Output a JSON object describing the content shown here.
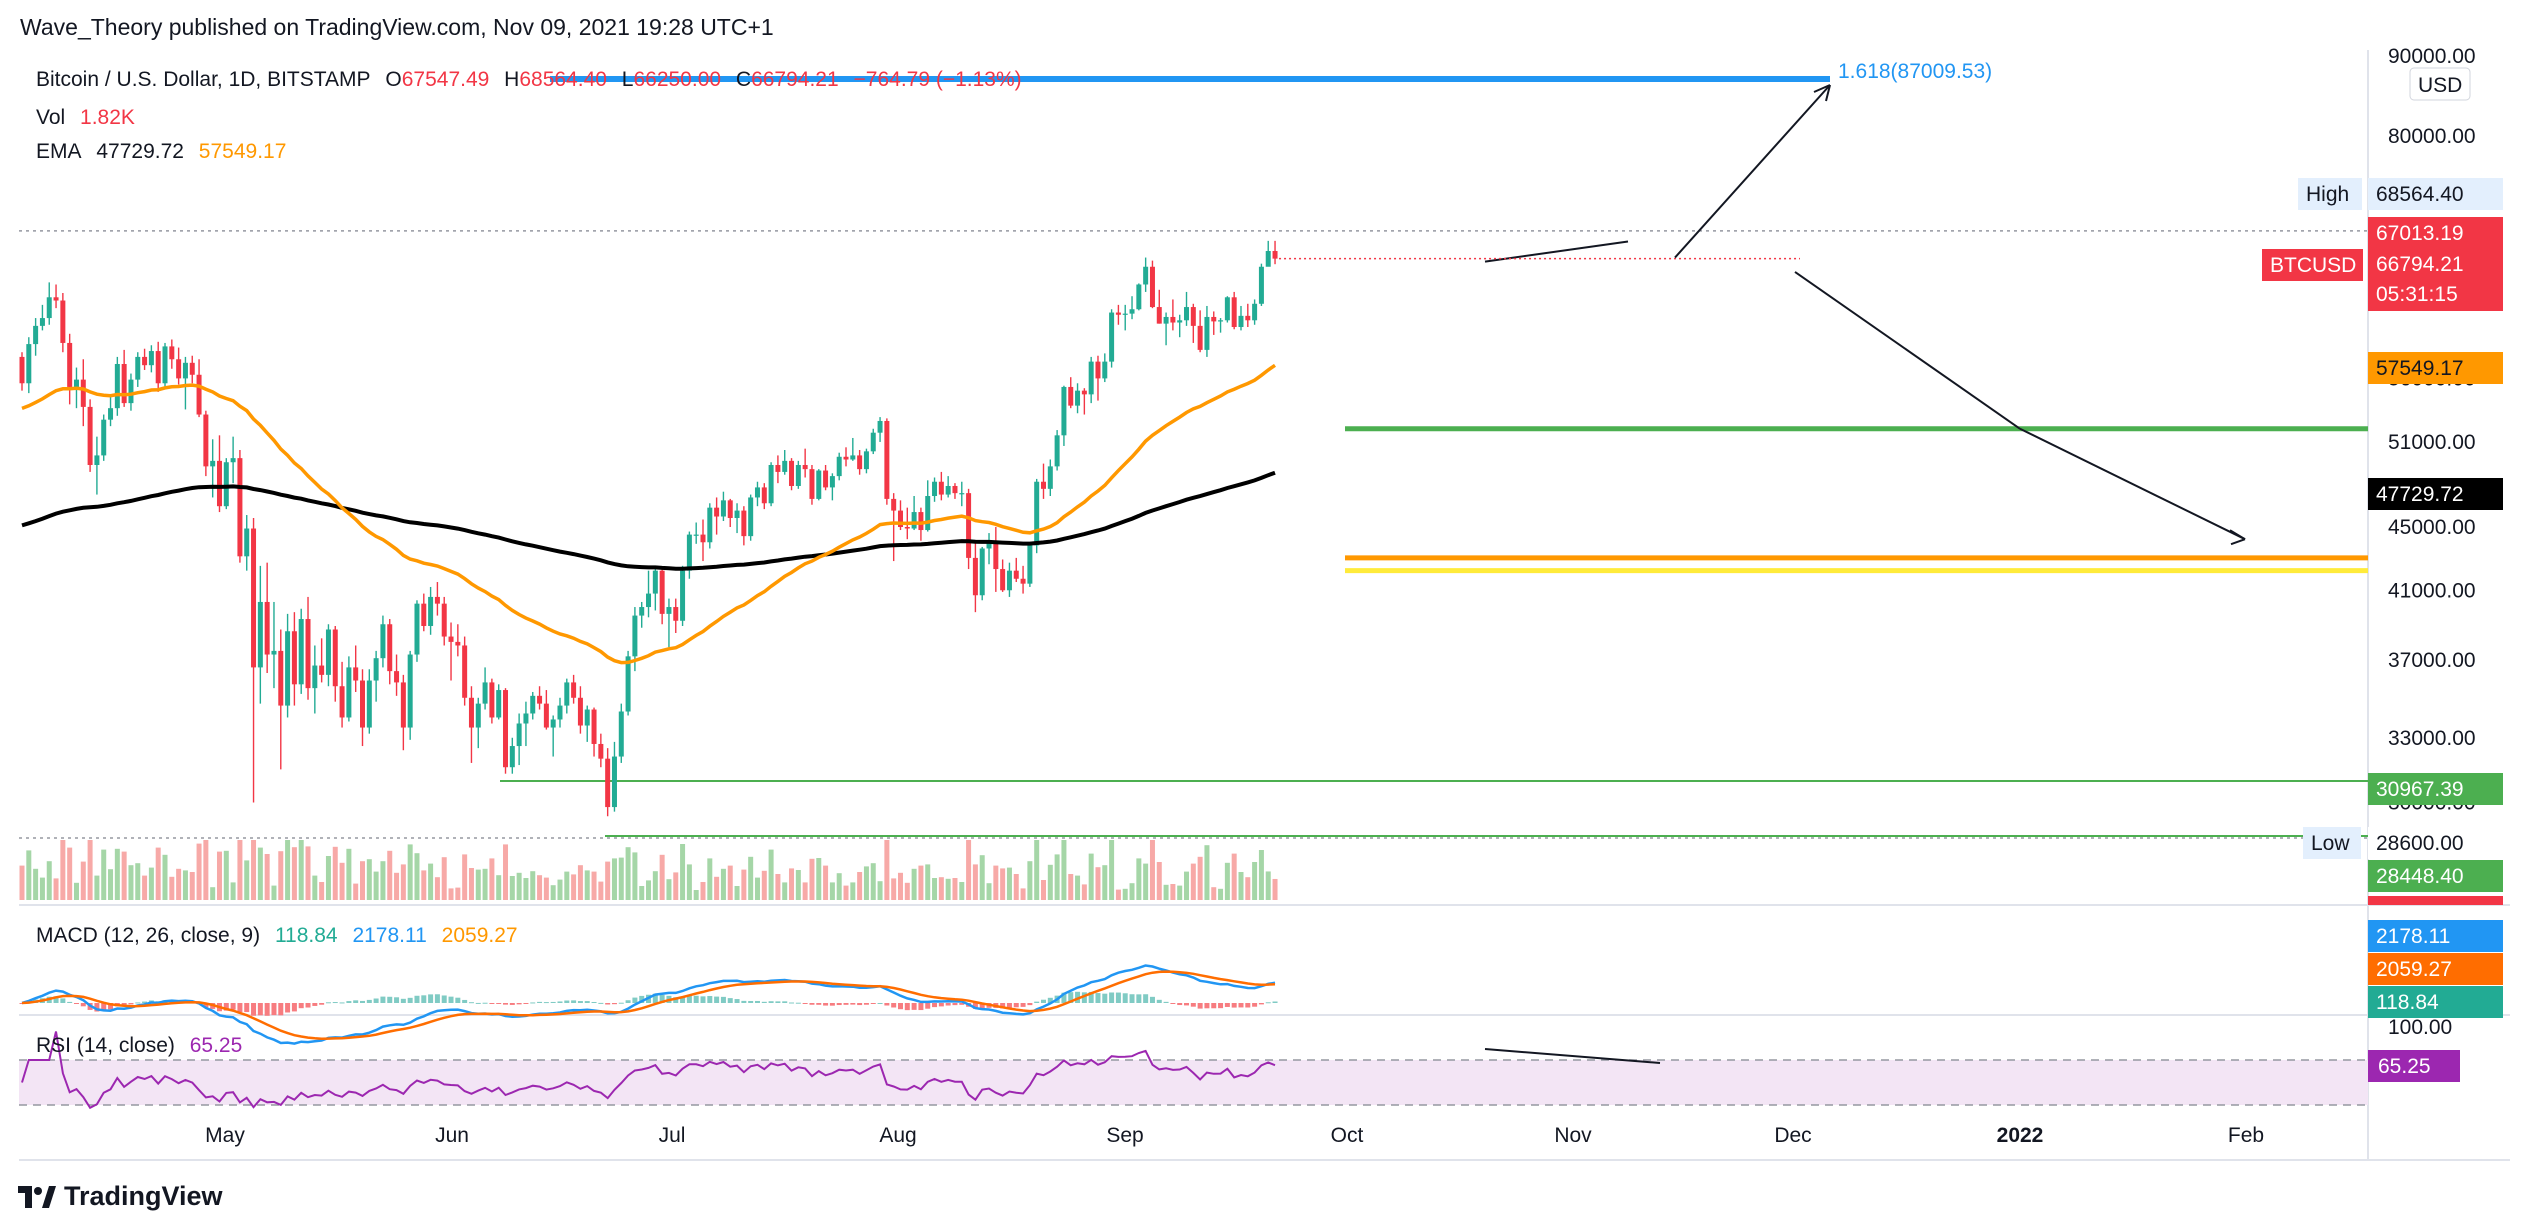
{
  "publisher": "Wave_Theory published on TradingView.com, Nov 09, 2021 19:28 UTC+1",
  "brand": "TradingView",
  "symbol": {
    "title": "Bitcoin / U.S. Dollar, 1D, BITSTAMP",
    "open_label": "O",
    "open": "67547.49",
    "high_label": "H",
    "high": "68564.40",
    "low_label": "L",
    "low": "66250.00",
    "close_label": "C",
    "close": "66794.21",
    "change": "−764.79 (−1.13%)"
  },
  "volume": {
    "label": "Vol",
    "value": "1.82K"
  },
  "ema": {
    "label": "EMA",
    "value1": "47729.72",
    "value2": "57549.17"
  },
  "macd": {
    "label": "MACD (12, 26, close, 9)",
    "hist": "118.84",
    "macd": "2178.11",
    "signal": "2059.27"
  },
  "rsi": {
    "label": "RSI (14, close)",
    "value": "65.25"
  },
  "currency": "USD",
  "colors": {
    "up": "#22ab94",
    "down": "#f23645",
    "ema_fast": "#ff9800",
    "ema_slow": "#000000",
    "fib_line": "#2196f3",
    "support_green": "#4caf50",
    "support_orange": "#ff9800",
    "support_yellow": "#ffeb3b",
    "rsi": "#9c27b0",
    "macd": "#2196f3",
    "signal": "#ff6d00"
  },
  "annotations": {
    "fib_label": "1.618(87009.53)",
    "high_label": "High",
    "low_label": "Low",
    "ticker": "BTCUSD",
    "countdown": "05:31:15"
  },
  "chart_data": {
    "type": "candlestick",
    "x_ticks": [
      "May",
      "Jun",
      "Jul",
      "Aug",
      "Sep",
      "Oct",
      "Nov",
      "Dec",
      "2022",
      "Feb"
    ],
    "y_ticks": [
      "90000.00",
      "80000.00",
      "68564.40",
      "67013.19",
      "66794.21",
      "57549.17",
      "56000.00",
      "51000.00",
      "47729.72",
      "45000.00",
      "41000.00",
      "37000.00",
      "33000.00",
      "30967.39",
      "30000.00",
      "28600.00",
      "28448.40"
    ],
    "price_labels": {
      "high": "68564.40",
      "last_close_upper": "67013.19",
      "last": "66794.21",
      "ema_fast": "57549.17",
      "ema_slow": "47729.72",
      "support": "30967.39",
      "low": "28600.00",
      "extra": "28448.40"
    },
    "macd_labels": [
      "2178.11",
      "2059.27",
      "118.84"
    ],
    "rsi_labels": [
      "100.00",
      "65.25"
    ],
    "levels": {
      "fib_1618": 87009.53,
      "green_support": 52000,
      "orange_support": 43000,
      "yellow_support": 42200,
      "green_thin_support": 30967.39,
      "low": 28600.0,
      "high": 68564.4
    },
    "candles": [
      [
        57800,
        58200,
        55000,
        55600
      ],
      [
        55600,
        59500,
        54800,
        58900
      ],
      [
        58900,
        61200,
        57900,
        60500
      ],
      [
        60500,
        62400,
        60100,
        61200
      ],
      [
        61200,
        64500,
        60600,
        63100
      ],
      [
        63100,
        64300,
        62100,
        62800
      ],
      [
        62800,
        63500,
        58200,
        59000
      ],
      [
        59000,
        59800,
        53900,
        55300
      ],
      [
        55300,
        56900,
        53600,
        55900
      ],
      [
        55900,
        57600,
        52200,
        53700
      ],
      [
        53700,
        54300,
        48800,
        49300
      ],
      [
        49300,
        51400,
        47200,
        50000
      ],
      [
        50000,
        53100,
        49600,
        52700
      ],
      [
        52700,
        54600,
        52200,
        53600
      ],
      [
        53600,
        57800,
        53000,
        57200
      ],
      [
        57200,
        58400,
        53700,
        54000
      ],
      [
        54000,
        56400,
        53400,
        55900
      ],
      [
        55900,
        58200,
        55300,
        57800
      ],
      [
        57800,
        58500,
        56700,
        57100
      ],
      [
        57100,
        58800,
        56500,
        58300
      ],
      [
        58300,
        59100,
        54900,
        55600
      ],
      [
        55600,
        59000,
        55200,
        58700
      ],
      [
        58700,
        59300,
        56800,
        57600
      ],
      [
        57600,
        58600,
        55500,
        56000
      ],
      [
        56000,
        57800,
        53500,
        57300
      ],
      [
        57300,
        57900,
        55600,
        56300
      ],
      [
        56300,
        57600,
        52900,
        53100
      ],
      [
        53100,
        53400,
        48500,
        49200
      ],
      [
        49200,
        51200,
        47000,
        49600
      ],
      [
        49600,
        51500,
        46000,
        46400
      ],
      [
        46400,
        49800,
        46200,
        49500
      ],
      [
        49500,
        51400,
        48000,
        49800
      ],
      [
        49800,
        50400,
        42700,
        43100
      ],
      [
        43100,
        45800,
        42200,
        44900
      ],
      [
        44900,
        45600,
        30000,
        36600
      ],
      [
        36600,
        42500,
        34700,
        40300
      ],
      [
        40300,
        42700,
        36300,
        37300
      ],
      [
        37300,
        40300,
        35500,
        37500
      ],
      [
        37500,
        38700,
        31500,
        34600
      ],
      [
        34600,
        39600,
        34000,
        38600
      ],
      [
        38600,
        39700,
        34600,
        35700
      ],
      [
        35700,
        39900,
        35200,
        39300
      ],
      [
        39300,
        40600,
        34900,
        35500
      ],
      [
        35500,
        37800,
        34200,
        36700
      ],
      [
        36700,
        38200,
        35800,
        36200
      ],
      [
        36200,
        39000,
        35600,
        38700
      ],
      [
        38700,
        38900,
        34800,
        35600
      ],
      [
        35600,
        36900,
        33500,
        34000
      ],
      [
        34000,
        37200,
        33800,
        36600
      ],
      [
        36600,
        37800,
        35300,
        35900
      ],
      [
        35900,
        36500,
        32600,
        33500
      ],
      [
        33500,
        36500,
        33200,
        35900
      ],
      [
        35900,
        37500,
        34800,
        37100
      ],
      [
        37100,
        39500,
        36600,
        39000
      ],
      [
        39000,
        39300,
        35700,
        36400
      ],
      [
        36400,
        37300,
        35100,
        35800
      ],
      [
        35800,
        36200,
        32400,
        33500
      ],
      [
        33500,
        37500,
        32900,
        37300
      ],
      [
        37300,
        40400,
        36900,
        40200
      ],
      [
        40200,
        40800,
        38600,
        38900
      ],
      [
        38900,
        41200,
        38400,
        40600
      ],
      [
        40600,
        41500,
        39500,
        40200
      ],
      [
        40200,
        40600,
        37800,
        38300
      ],
      [
        38300,
        39100,
        35900,
        38000
      ],
      [
        38000,
        39000,
        37200,
        37800
      ],
      [
        37800,
        38300,
        34600,
        35000
      ],
      [
        35000,
        35600,
        31800,
        33500
      ],
      [
        33500,
        35000,
        32500,
        34700
      ],
      [
        34700,
        36600,
        34400,
        35800
      ],
      [
        35800,
        36000,
        33700,
        34000
      ],
      [
        34000,
        35700,
        33900,
        35400
      ],
      [
        35400,
        35500,
        31300,
        31600
      ],
      [
        31600,
        33000,
        31300,
        32600
      ],
      [
        32600,
        34200,
        31700,
        33700
      ],
      [
        33700,
        34800,
        32600,
        34200
      ],
      [
        34200,
        35300,
        33900,
        35100
      ],
      [
        35100,
        35600,
        34400,
        34700
      ],
      [
        34700,
        35400,
        33400,
        33500
      ],
      [
        33500,
        34100,
        32100,
        33900
      ],
      [
        33900,
        35000,
        33500,
        34600
      ],
      [
        34600,
        36000,
        34200,
        35800
      ],
      [
        35800,
        36200,
        34700,
        35000
      ],
      [
        35000,
        35600,
        33200,
        33600
      ],
      [
        33600,
        34600,
        32800,
        34400
      ],
      [
        34400,
        34500,
        32100,
        32700
      ],
      [
        32700,
        33200,
        31600,
        32000
      ],
      [
        32000,
        32500,
        29400,
        29800
      ],
      [
        29800,
        32800,
        29600,
        32100
      ],
      [
        32100,
        34700,
        31800,
        34300
      ],
      [
        34300,
        37500,
        34100,
        37200
      ],
      [
        37200,
        40000,
        36400,
        39500
      ],
      [
        39500,
        40300,
        38800,
        40000
      ],
      [
        40000,
        42200,
        39400,
        40800
      ],
      [
        40800,
        42500,
        39800,
        42200
      ],
      [
        42200,
        42400,
        39000,
        39600
      ],
      [
        39600,
        40500,
        37700,
        40000
      ],
      [
        40000,
        40500,
        38500,
        39200
      ],
      [
        39200,
        42500,
        38900,
        42200
      ],
      [
        42200,
        44700,
        41700,
        44500
      ],
      [
        44500,
        45300,
        43900,
        44500
      ],
      [
        44500,
        45500,
        42800,
        44000
      ],
      [
        44000,
        46600,
        43600,
        46300
      ],
      [
        46300,
        47000,
        44500,
        45700
      ],
      [
        45700,
        47400,
        45400,
        46800
      ],
      [
        46800,
        46900,
        45000,
        45600
      ],
      [
        45600,
        46600,
        44600,
        46100
      ],
      [
        46100,
        46400,
        43800,
        44400
      ],
      [
        44400,
        47200,
        44100,
        47000
      ],
      [
        47000,
        48100,
        46400,
        47700
      ],
      [
        47700,
        48000,
        46200,
        46600
      ],
      [
        46600,
        49500,
        46400,
        49300
      ],
      [
        49300,
        50000,
        48000,
        48800
      ],
      [
        48800,
        50400,
        48600,
        49600
      ],
      [
        49600,
        49800,
        47500,
        47800
      ],
      [
        47800,
        49600,
        47600,
        49300
      ],
      [
        49300,
        50500,
        48400,
        49000
      ],
      [
        49000,
        49300,
        46500,
        46900
      ],
      [
        46900,
        49000,
        46800,
        48900
      ],
      [
        48900,
        49300,
        47500,
        47700
      ],
      [
        47700,
        48700,
        46800,
        48500
      ],
      [
        48500,
        50200,
        48200,
        49900
      ],
      [
        49900,
        50600,
        49200,
        49700
      ],
      [
        49700,
        51300,
        49600,
        50000
      ],
      [
        50000,
        50400,
        48600,
        49000
      ],
      [
        49000,
        50500,
        48700,
        50300
      ],
      [
        50300,
        52000,
        50100,
        51700
      ],
      [
        51700,
        52900,
        51000,
        52600
      ],
      [
        52600,
        52800,
        46500,
        46900
      ],
      [
        46900,
        47300,
        42800,
        46100
      ],
      [
        46100,
        46800,
        44800,
        45000
      ],
      [
        45000,
        46300,
        44200,
        44900
      ],
      [
        44900,
        47100,
        44800,
        46000
      ],
      [
        46000,
        46300,
        44100,
        44800
      ],
      [
        44800,
        48200,
        44700,
        47100
      ],
      [
        47100,
        48400,
        46700,
        48100
      ],
      [
        48100,
        48800,
        46800,
        47200
      ],
      [
        47200,
        48500,
        47000,
        47800
      ],
      [
        47800,
        48000,
        46900,
        47300
      ],
      [
        47300,
        48100,
        46400,
        47300
      ],
      [
        47300,
        47600,
        42300,
        43000
      ],
      [
        43000,
        44000,
        39700,
        40700
      ],
      [
        40700,
        43700,
        40400,
        43600
      ],
      [
        43600,
        44600,
        42600,
        44000
      ],
      [
        44000,
        45000,
        40900,
        42300
      ],
      [
        42300,
        42900,
        40900,
        41000
      ],
      [
        41000,
        42700,
        40600,
        42200
      ],
      [
        42200,
        43000,
        41500,
        41700
      ],
      [
        41700,
        42500,
        40800,
        41400
      ],
      [
        41400,
        44000,
        41200,
        43800
      ],
      [
        43800,
        48300,
        43300,
        48100
      ],
      [
        48100,
        49400,
        46900,
        47600
      ],
      [
        47600,
        49700,
        47100,
        49200
      ],
      [
        49200,
        51900,
        48900,
        51500
      ],
      [
        51500,
        55400,
        50700,
        55300
      ],
      [
        55300,
        56100,
        53600,
        53800
      ],
      [
        53800,
        55600,
        53200,
        55000
      ],
      [
        55000,
        55200,
        53100,
        54700
      ],
      [
        54700,
        57800,
        54000,
        57400
      ],
      [
        57400,
        57900,
        54200,
        56000
      ],
      [
        56000,
        58100,
        55700,
        57400
      ],
      [
        57400,
        62000,
        56900,
        61700
      ],
      [
        61700,
        62400,
        60600,
        61500
      ],
      [
        61500,
        62400,
        60100,
        61600
      ],
      [
        61600,
        63200,
        61100,
        62000
      ],
      [
        62000,
        64400,
        61900,
        64300
      ],
      [
        64300,
        66900,
        63600,
        66000
      ],
      [
        66000,
        66600,
        62100,
        62200
      ],
      [
        62200,
        63800,
        60700,
        60700
      ],
      [
        60700,
        61700,
        58800,
        61300
      ],
      [
        61300,
        62900,
        60100,
        60800
      ],
      [
        60800,
        61500,
        59500,
        61000
      ],
      [
        61000,
        63600,
        60500,
        62200
      ],
      [
        62200,
        62500,
        59000,
        60500
      ],
      [
        60500,
        61900,
        58200,
        58400
      ],
      [
        58400,
        62300,
        57800,
        61300
      ],
      [
        61300,
        61800,
        59700,
        60900
      ],
      [
        60900,
        61200,
        59900,
        61000
      ],
      [
        61000,
        63200,
        60800,
        63100
      ],
      [
        63100,
        63600,
        60200,
        60400
      ],
      [
        60400,
        62300,
        60100,
        61400
      ],
      [
        61400,
        62500,
        60400,
        61000
      ],
      [
        61000,
        62900,
        60600,
        62500
      ],
      [
        62500,
        66300,
        62300,
        66000
      ],
      [
        66000,
        68564,
        66250,
        67547
      ],
      [
        67547,
        68564,
        66250,
        66794
      ]
    ],
    "ema_fast_final": 57549.17,
    "ema_slow_final": 47729.72
  }
}
